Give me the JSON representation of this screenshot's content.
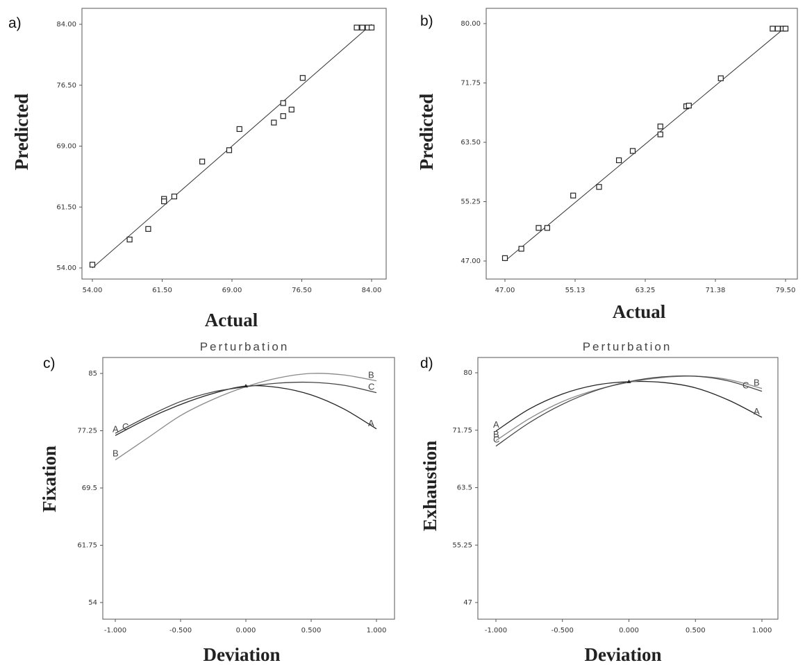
{
  "chart_data": [
    {
      "panel_label": "a)",
      "type": "scatter",
      "xlabel": "Actual",
      "ylabel": "Predicted",
      "xlim": [
        54,
        84
      ],
      "ylim": [
        54,
        84
      ],
      "xticks": [
        "54.00",
        "61.50",
        "69.00",
        "76.50",
        "84.00"
      ],
      "yticks": [
        "54.00",
        "61.50",
        "69.00",
        "76.50",
        "84.00"
      ],
      "fit_line": [
        [
          54,
          54
        ],
        [
          84,
          84
        ]
      ],
      "points": [
        [
          54.0,
          54.4
        ],
        [
          58.0,
          57.5
        ],
        [
          60.0,
          58.8
        ],
        [
          61.7,
          62.5
        ],
        [
          61.7,
          62.2
        ],
        [
          62.8,
          62.8
        ],
        [
          65.8,
          67.1
        ],
        [
          68.7,
          68.5
        ],
        [
          69.8,
          71.1
        ],
        [
          73.5,
          71.9
        ],
        [
          74.5,
          72.7
        ],
        [
          74.5,
          74.3
        ],
        [
          75.4,
          73.5
        ],
        [
          76.6,
          77.4
        ],
        [
          82.4,
          83.6
        ],
        [
          83.0,
          83.6
        ],
        [
          83.6,
          83.6
        ],
        [
          84.0,
          83.6
        ]
      ]
    },
    {
      "panel_label": "b)",
      "type": "scatter",
      "xlabel": "Actual",
      "ylabel": "Predicted",
      "xlim": [
        47,
        79.5
      ],
      "ylim": [
        47,
        80
      ],
      "xticks": [
        "47.00",
        "55.13",
        "63.25",
        "71.38",
        "79.50"
      ],
      "yticks": [
        "47.00",
        "55.25",
        "63.50",
        "71.75",
        "80.00"
      ],
      "fit_line": [
        [
          47,
          47
        ],
        [
          79.5,
          79.5
        ]
      ],
      "points": [
        [
          47.0,
          47.4
        ],
        [
          48.9,
          48.7
        ],
        [
          50.9,
          51.6
        ],
        [
          51.9,
          51.6
        ],
        [
          54.9,
          56.1
        ],
        [
          57.9,
          57.3
        ],
        [
          60.2,
          61.0
        ],
        [
          61.8,
          62.3
        ],
        [
          65.0,
          64.6
        ],
        [
          65.0,
          65.7
        ],
        [
          68.0,
          68.5
        ],
        [
          68.3,
          68.6
        ],
        [
          72.0,
          72.4
        ],
        [
          78.0,
          79.3
        ],
        [
          78.6,
          79.3
        ],
        [
          79.2,
          79.3
        ],
        [
          79.5,
          79.3
        ]
      ]
    },
    {
      "panel_label": "c)",
      "type": "line",
      "title": "Perturbation",
      "xlabel": "Deviation",
      "ylabel": "Fixation",
      "xlim": [
        -1,
        1
      ],
      "ylim": [
        54,
        85
      ],
      "xticks": [
        "-1.000",
        "-0.500",
        "0.000",
        "0.500",
        "1.000"
      ],
      "yticks": [
        "54",
        "61.75",
        "69.5",
        "77.25",
        "85"
      ],
      "x": [
        -1.0,
        -0.75,
        -0.5,
        -0.25,
        0.0,
        0.25,
        0.5,
        0.75,
        1.0
      ],
      "series": [
        {
          "name": "A",
          "values": [
            76.6,
            78.9,
            80.8,
            82.3,
            83.3,
            83.1,
            82.1,
            80.2,
            77.5
          ]
        },
        {
          "name": "B",
          "values": [
            73.3,
            76.3,
            79.3,
            81.5,
            83.2,
            84.4,
            85.0,
            84.8,
            84.0
          ]
        },
        {
          "name": "C",
          "values": [
            76.9,
            79.2,
            81.2,
            82.5,
            83.2,
            83.7,
            83.8,
            83.4,
            82.4
          ]
        }
      ],
      "label_positions": [
        {
          "name": "A",
          "at": "left"
        },
        {
          "name": "C",
          "at": "left"
        },
        {
          "name": "B",
          "at": "left"
        },
        {
          "name": "B",
          "at": "right"
        },
        {
          "name": "C",
          "at": "right"
        },
        {
          "name": "A",
          "at": "right"
        }
      ]
    },
    {
      "panel_label": "d)",
      "type": "line",
      "title": "Perturbation",
      "xlabel": "Deviation",
      "ylabel": "Exhaustion",
      "xlim": [
        -1,
        1
      ],
      "ylim": [
        47,
        80.5
      ],
      "xticks": [
        "-1.000",
        "-0.500",
        "0.000",
        "0.500",
        "1.000"
      ],
      "yticks": [
        "47",
        "55.25",
        "63.5",
        "71.75",
        "80"
      ],
      "x": [
        -1.0,
        -0.75,
        -0.5,
        -0.25,
        0.0,
        0.25,
        0.5,
        0.75,
        1.0
      ],
      "series": [
        {
          "name": "A",
          "values": [
            72.0,
            75.2,
            77.4,
            78.7,
            79.2,
            79.1,
            78.3,
            76.5,
            74.0
          ]
        },
        {
          "name": "B",
          "values": [
            70.6,
            73.8,
            76.3,
            78.0,
            79.1,
            79.8,
            80.0,
            79.5,
            78.2
          ]
        },
        {
          "name": "C",
          "values": [
            69.8,
            73.2,
            75.9,
            77.9,
            79.2,
            79.9,
            80.0,
            79.3,
            77.8
          ]
        }
      ],
      "label_positions": [
        {
          "name": "A",
          "at": "left"
        },
        {
          "name": "B",
          "at": "left"
        },
        {
          "name": "C",
          "at": "left"
        },
        {
          "name": "C",
          "at": "right"
        },
        {
          "name": "B",
          "at": "right"
        },
        {
          "name": "A",
          "at": "right"
        }
      ]
    }
  ]
}
